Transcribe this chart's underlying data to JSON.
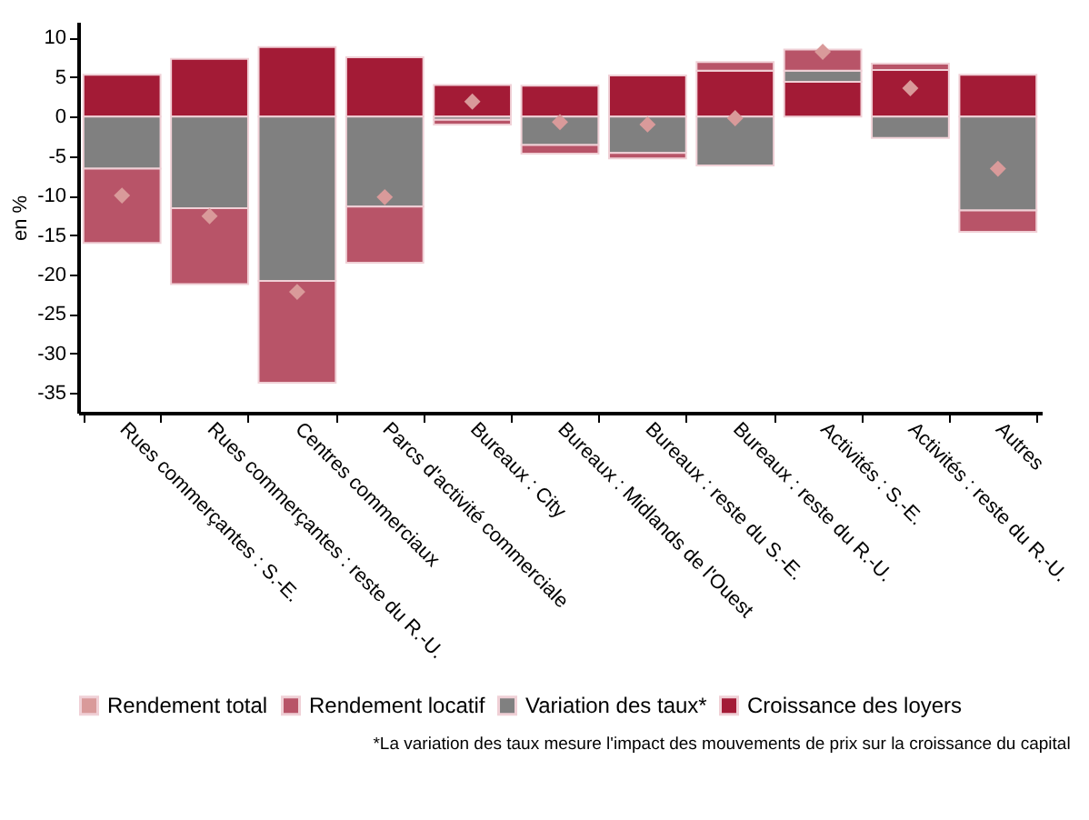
{
  "chart_data": {
    "type": "bar",
    "stacked": true,
    "ylabel": "en %",
    "categories": [
      "Rues commerçantes : S.-E.",
      "Rues commerçantes : reste du R.-U.",
      "Centres commerciaux",
      "Parcs d'activité commerciale",
      "Bureaux : City",
      "Bureaux : Midlands de l'Ouest",
      "Bureaux : reste du S.-E.",
      "Bureaux : reste du R.-U.",
      "Activités : S.-E.",
      "Activités : reste du R.-U.",
      "Autres"
    ],
    "series": [
      {
        "name": "Croissance des loyers",
        "color": "#a31b36",
        "values": [
          5.3,
          7.3,
          8.8,
          7.5,
          4.0,
          3.9,
          5.2,
          5.8,
          4.4,
          5.9,
          5.3
        ]
      },
      {
        "name": "Variation des taux*",
        "color": "#808080",
        "values": [
          -6.6,
          -11.6,
          -20.8,
          -11.4,
          -0.4,
          -3.6,
          -4.6,
          -6.2,
          1.4,
          -2.7,
          -11.9
        ]
      },
      {
        "name": "Rendement locatif",
        "color": "#b85468",
        "values": [
          -9.4,
          -9.6,
          -12.9,
          -7.1,
          -0.6,
          -1.1,
          -0.7,
          1.1,
          2.7,
          0.8,
          -2.7
        ]
      },
      {
        "name": "Rendement total",
        "type": "scatter",
        "marker": "diamond",
        "color": "#d99a9a",
        "x": [
          "Rues commerçantes : S.-E.",
          "Rues commerçantes : reste du R.-U.",
          "Centres commerciaux",
          "Parcs d'activité commerciale",
          "Bureaux : City",
          "Bureaux : Midlands de l'Ouest",
          "Bureaux : reste du S.-E.",
          "Bureaux : reste du R.-U.",
          "Activités : S.-E.",
          "Activités : reste du R.-U.",
          "Autres"
        ],
        "values": [
          -10.0,
          -12.6,
          -22.2,
          -10.2,
          1.9,
          -0.7,
          -1.0,
          -0.2,
          8.2,
          3.6,
          -6.6
        ]
      }
    ],
    "ylim": [
      -37.5,
      12
    ],
    "yticks": [
      -35,
      -30,
      -25,
      -20,
      -15,
      -10,
      -5,
      0,
      5,
      10
    ],
    "grid": false,
    "legend": "bottom",
    "annotations": [
      "*La variation des taux mesure l'impact des mouvements de prix sur la croissance du capital"
    ]
  }
}
